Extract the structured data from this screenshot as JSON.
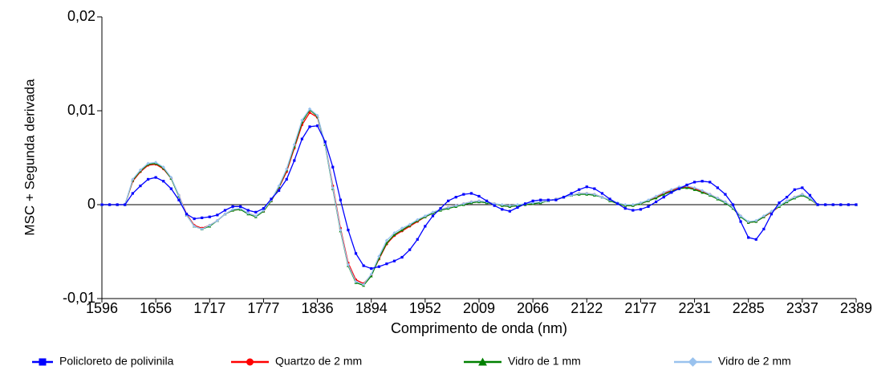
{
  "chart_data": {
    "type": "line",
    "xlabel": "Comprimento de onda (nm)",
    "ylabel": "MSC + Segunda derivada",
    "categories": [
      "1596",
      null,
      null,
      null,
      null,
      null,
      null,
      "1656",
      null,
      null,
      null,
      null,
      null,
      null,
      "1717",
      null,
      null,
      null,
      null,
      null,
      null,
      "1777",
      null,
      null,
      null,
      null,
      null,
      null,
      "1836",
      null,
      null,
      null,
      null,
      null,
      null,
      "1894",
      null,
      null,
      null,
      null,
      null,
      null,
      "1952",
      null,
      null,
      null,
      null,
      null,
      null,
      "2009",
      null,
      null,
      null,
      null,
      null,
      null,
      "2066",
      null,
      null,
      null,
      null,
      null,
      null,
      "2122",
      null,
      null,
      null,
      null,
      null,
      null,
      "2177",
      null,
      null,
      null,
      null,
      null,
      null,
      "2231",
      null,
      null,
      null,
      null,
      null,
      null,
      "2285",
      null,
      null,
      null,
      null,
      null,
      null,
      "2337",
      null,
      null,
      null,
      null,
      null,
      null,
      "2389"
    ],
    "ylim": [
      -0.01,
      0.02
    ],
    "yticks": [
      {
        "value": -0.01,
        "label": "-0,01"
      },
      0,
      {
        "value": 0.01,
        "label": "0,01"
      },
      {
        "value": 0.02,
        "label": "0,02"
      }
    ],
    "series": [
      {
        "name": "Policloreto de polivinila",
        "color": "#0000ff",
        "marker": "square",
        "values": [
          0,
          0,
          0,
          0,
          0.0012,
          0.002,
          0.0027,
          0.0029,
          0.0025,
          0.0017,
          0.0005,
          -0.001,
          -0.0015,
          -0.0014,
          -0.0013,
          -0.0011,
          -0.0006,
          -0.0002,
          -0.0002,
          -0.0006,
          -0.0008,
          -0.0004,
          0.0006,
          0.0015,
          0.0027,
          0.0047,
          0.007,
          0.0083,
          0.0084,
          0.0067,
          0.004,
          0.0005,
          -0.0027,
          -0.0052,
          -0.0065,
          -0.0068,
          -0.0066,
          -0.0063,
          -0.006,
          -0.0056,
          -0.0048,
          -0.0037,
          -0.0023,
          -0.0012,
          -0.0004,
          0.0004,
          0.0008,
          0.0011,
          0.0012,
          0.0009,
          0.0004,
          -0.0001,
          -0.0005,
          -0.0007,
          -0.0003,
          0.0001,
          0.0004,
          0.0005,
          0.0005,
          0.0005,
          0.0008,
          0.0012,
          0.0016,
          0.0019,
          0.0017,
          0.0012,
          0.0006,
          0.0001,
          -0.0004,
          -0.0006,
          -0.0005,
          -0.0002,
          0.0003,
          0.0008,
          0.0013,
          0.0017,
          0.0021,
          0.0024,
          0.0025,
          0.0024,
          0.0018,
          0.0011,
          0,
          -0.0018,
          -0.0035,
          -0.0037,
          -0.0026,
          -0.001,
          0.0002,
          0.0008,
          0.0016,
          0.0018,
          0.001,
          0,
          0,
          0,
          0,
          0,
          0
        ]
      },
      {
        "name": "Quartzo de 2 mm",
        "color": "#ff0000",
        "marker": "circle",
        "values": [
          0,
          0,
          0,
          0,
          0.0025,
          0.0035,
          0.0042,
          0.0043,
          0.0038,
          0.0028,
          0.001,
          -0.001,
          -0.0022,
          -0.0025,
          -0.0022,
          -0.0017,
          -0.001,
          -0.0006,
          -0.0005,
          -0.0009,
          -0.0012,
          -0.0007,
          0.0004,
          0.0018,
          0.0035,
          0.006,
          0.0085,
          0.0098,
          0.0093,
          0.0065,
          0.002,
          -0.0025,
          -0.0062,
          -0.008,
          -0.0084,
          -0.0075,
          -0.0058,
          -0.0042,
          -0.0033,
          -0.0028,
          -0.0023,
          -0.0018,
          -0.0013,
          -0.0009,
          -0.0005,
          -0.0003,
          -0.0001,
          0.0001,
          0.0003,
          0.0004,
          0.0003,
          0.0001,
          -0.0001,
          -0.0002,
          -0.0001,
          0,
          0.0001,
          0.0003,
          0.0004,
          0.0006,
          0.0008,
          0.001,
          0.0012,
          0.0012,
          0.0011,
          0.0008,
          0.0005,
          0.0001,
          -0.0001,
          -0.0001,
          0.0001,
          0.0004,
          0.0008,
          0.0012,
          0.0015,
          0.0018,
          0.0019,
          0.0017,
          0.0014,
          0.0011,
          0.0007,
          0.0003,
          -0.0003,
          -0.0012,
          -0.0019,
          -0.0018,
          -0.0013,
          -0.0008,
          -0.0002,
          0.0004,
          0.0008,
          0.0011,
          0.0006,
          0,
          0,
          0,
          0,
          0,
          0
        ]
      },
      {
        "name": "Vidro de 1 mm",
        "color": "#008000",
        "marker": "triangle",
        "values": [
          0,
          0,
          0,
          0,
          0.0026,
          0.0036,
          0.0043,
          0.0044,
          0.0039,
          0.0028,
          0.0009,
          -0.0011,
          -0.0023,
          -0.0026,
          -0.0023,
          -0.0017,
          -0.001,
          -0.0006,
          -0.0005,
          -0.001,
          -0.0013,
          -0.0007,
          0.0004,
          0.0019,
          0.0037,
          0.0062,
          0.0088,
          0.0101,
          0.0094,
          0.0064,
          0.0017,
          -0.0028,
          -0.0065,
          -0.0083,
          -0.0086,
          -0.0076,
          -0.0057,
          -0.0041,
          -0.0032,
          -0.0027,
          -0.0022,
          -0.0017,
          -0.0013,
          -0.0009,
          -0.0006,
          -0.0004,
          -0.0002,
          0,
          0.0002,
          0.0003,
          0.0002,
          0.0001,
          -0.0001,
          -0.0002,
          -0.0001,
          0,
          0.0001,
          0.0002,
          0.0004,
          0.0006,
          0.0008,
          0.001,
          0.0011,
          0.0011,
          0.001,
          0.0008,
          0.0004,
          0.0001,
          -0.0001,
          -0.0001,
          0.0001,
          0.0004,
          0.0007,
          0.0011,
          0.0014,
          0.0017,
          0.0018,
          0.0016,
          0.0013,
          0.001,
          0.0006,
          0.0002,
          -0.0004,
          -0.0013,
          -0.0019,
          -0.0018,
          -0.0013,
          -0.0007,
          -0.0002,
          0.0003,
          0.0007,
          0.001,
          0.0006,
          0,
          0,
          0,
          0,
          0,
          0
        ]
      },
      {
        "name": "Vidro de 2 mm",
        "color": "#99c2ee",
        "marker": "diamond",
        "values": [
          0,
          0,
          0,
          0,
          0.0027,
          0.0037,
          0.0044,
          0.0045,
          0.004,
          0.0029,
          0.001,
          -0.0011,
          -0.0023,
          -0.0026,
          -0.0022,
          -0.0017,
          -0.001,
          -0.0005,
          -0.0004,
          -0.0009,
          -0.0012,
          -0.0006,
          0.0005,
          0.002,
          0.0038,
          0.0064,
          0.009,
          0.0102,
          0.0095,
          0.0065,
          0.0018,
          -0.0027,
          -0.0064,
          -0.0082,
          -0.0085,
          -0.0074,
          -0.0055,
          -0.0038,
          -0.003,
          -0.0025,
          -0.0021,
          -0.0016,
          -0.0012,
          -0.0008,
          -0.0005,
          -0.0003,
          -0.0001,
          0.0001,
          0.0003,
          0.0004,
          0.0003,
          0.0001,
          0,
          -0.0001,
          0,
          0.0001,
          0.0002,
          0.0003,
          0.0004,
          0.0006,
          0.0008,
          0.001,
          0.0012,
          0.0012,
          0.0011,
          0.0008,
          0.0005,
          0.0002,
          0,
          0,
          0.0002,
          0.0005,
          0.0009,
          0.0013,
          0.0016,
          0.0019,
          0.002,
          0.0018,
          0.0015,
          0.0011,
          0.0007,
          0.0003,
          -0.0003,
          -0.0012,
          -0.0018,
          -0.0017,
          -0.0012,
          -0.0007,
          -0.0001,
          0.0004,
          0.0008,
          0.0011,
          0.0007,
          0,
          0,
          0,
          0,
          0,
          0
        ]
      }
    ]
  }
}
